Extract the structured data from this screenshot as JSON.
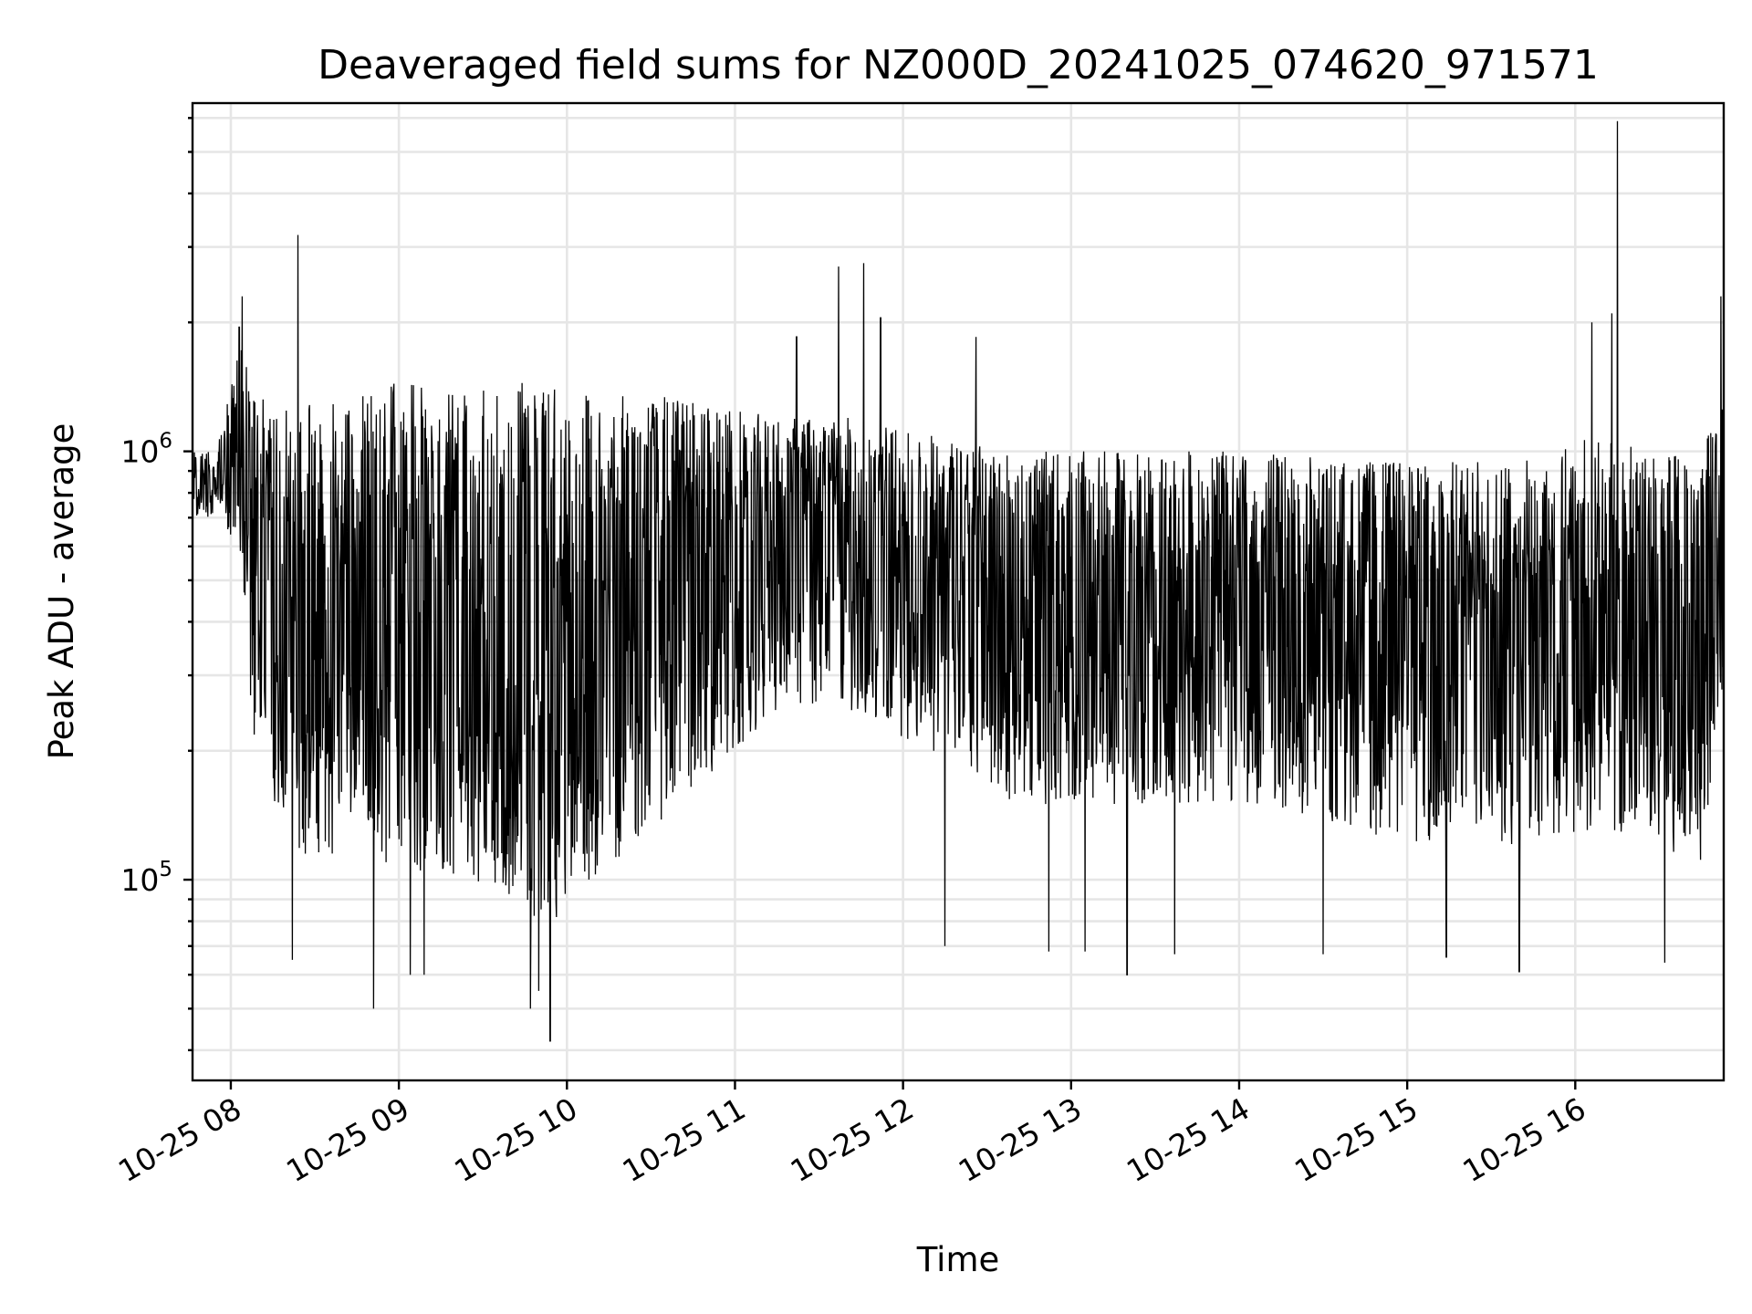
{
  "chart_data": {
    "type": "line",
    "title": "Deaveraged field sums for NZ000D_20241025_074620_971571",
    "xlabel": "Time",
    "ylabel": "Peak ADU - average",
    "y_scale": "log",
    "ylim": [
      34000,
      6500000
    ],
    "xlim": [
      "2024-10-25T07:46:20",
      "2024-10-25T16:53:00"
    ],
    "x_tick_values": [
      "2024-10-25T08:00",
      "2024-10-25T09:00",
      "2024-10-25T10:00",
      "2024-10-25T11:00",
      "2024-10-25T12:00",
      "2024-10-25T13:00",
      "2024-10-25T14:00",
      "2024-10-25T15:00",
      "2024-10-25T16:00"
    ],
    "x_tick_labels": [
      "10-25 08",
      "10-25 09",
      "10-25 10",
      "10-25 11",
      "10-25 12",
      "10-25 13",
      "10-25 14",
      "10-25 15",
      "10-25 16"
    ],
    "y_ticks": [
      {
        "value": 100000,
        "base": "10",
        "exp": "5"
      },
      {
        "value": 1000000,
        "base": "10",
        "exp": "6"
      }
    ],
    "grid": true,
    "line_color": "#000000",
    "series": [
      {
        "x": [
          "2024-10-25T07:46:20",
          "2024-10-25T07:55:00",
          "2024-10-25T08:03:00",
          "2024-10-25T08:08:00",
          "2024-10-25T08:15:00",
          "2024-10-25T08:24:00",
          "2024-10-25T08:35:00",
          "2024-10-25T08:45:00",
          "2024-10-25T08:55:00",
          "2024-10-25T09:05:00",
          "2024-10-25T09:25:00",
          "2024-10-25T09:45:00",
          "2024-10-25T09:55:00",
          "2024-10-25T10:10:00",
          "2024-10-25T10:40:00",
          "2024-10-25T11:15:00",
          "2024-10-25T11:40:00",
          "2024-10-25T12:10:00",
          "2024-10-25T12:40:00",
          "2024-10-25T13:10:00",
          "2024-10-25T13:40:00",
          "2024-10-25T14:10:00",
          "2024-10-25T14:40:00",
          "2024-10-25T15:10:00",
          "2024-10-25T15:40:00",
          "2024-10-25T16:05:00",
          "2024-10-25T16:25:00",
          "2024-10-25T16:45:00",
          "2024-10-25T16:53:00"
        ],
        "mean": [
          800000,
          850000,
          1000000,
          600000,
          420000,
          380000,
          380000,
          420000,
          350000,
          380000,
          380000,
          320000,
          300000,
          380000,
          500000,
          650000,
          600000,
          520000,
          450000,
          420000,
          420000,
          400000,
          400000,
          380000,
          380000,
          400000,
          380000,
          320000,
          550000
        ],
        "upper": [
          1000000,
          1000000,
          1800000,
          1400000,
          1300000,
          1300000,
          1300000,
          1350000,
          1450000,
          1450000,
          1450000,
          1450000,
          1400000,
          1350000,
          1350000,
          1200000,
          1200000,
          1100000,
          1000000,
          1000000,
          1000000,
          1000000,
          950000,
          950000,
          950000,
          1100000,
          1000000,
          1000000,
          1400000
        ],
        "lower": [
          700000,
          700000,
          600000,
          200000,
          150000,
          110000,
          110000,
          150000,
          110000,
          100000,
          100000,
          80000,
          80000,
          100000,
          150000,
          250000,
          250000,
          200000,
          150000,
          150000,
          150000,
          150000,
          130000,
          120000,
          120000,
          130000,
          120000,
          110000,
          300000
        ],
        "spikes": [
          [
            "2024-10-25T08:04:00",
            2300000
          ],
          [
            "2024-10-25T08:03:00",
            1950000
          ],
          [
            "2024-10-25T08:24:00",
            3200000
          ],
          [
            "2024-10-25T11:37:00",
            2700000
          ],
          [
            "2024-10-25T11:46:00",
            2750000
          ],
          [
            "2024-10-25T11:52:00",
            2050000
          ],
          [
            "2024-10-25T12:26:00",
            1850000
          ],
          [
            "2024-10-25T11:22:00",
            1850000
          ],
          [
            "2024-10-25T16:06:00",
            2000000
          ],
          [
            "2024-10-25T16:13:00",
            2100000
          ],
          [
            "2024-10-25T16:15:00",
            5900000
          ],
          [
            "2024-10-25T16:52:00",
            2300000
          ],
          [
            "2024-10-25T08:51:00",
            50000
          ],
          [
            "2024-10-25T09:04:00",
            60000
          ],
          [
            "2024-10-25T09:47:00",
            50000
          ],
          [
            "2024-10-25T09:50:00",
            55000
          ],
          [
            "2024-10-25T09:54:00",
            42000
          ],
          [
            "2024-10-25T08:22:00",
            65000
          ],
          [
            "2024-10-25T09:09:00",
            60000
          ],
          [
            "2024-10-25T12:15:00",
            70000
          ],
          [
            "2024-10-25T13:20:00",
            60000
          ],
          [
            "2024-10-25T13:37:00",
            67000
          ],
          [
            "2024-10-25T15:14:00",
            66000
          ],
          [
            "2024-10-25T15:40:00",
            61000
          ],
          [
            "2024-10-25T16:32:00",
            64000
          ],
          [
            "2024-10-25T14:30:00",
            67000
          ],
          [
            "2024-10-25T13:05:00",
            68000
          ],
          [
            "2024-10-25T12:52:00",
            68000
          ]
        ]
      }
    ]
  }
}
